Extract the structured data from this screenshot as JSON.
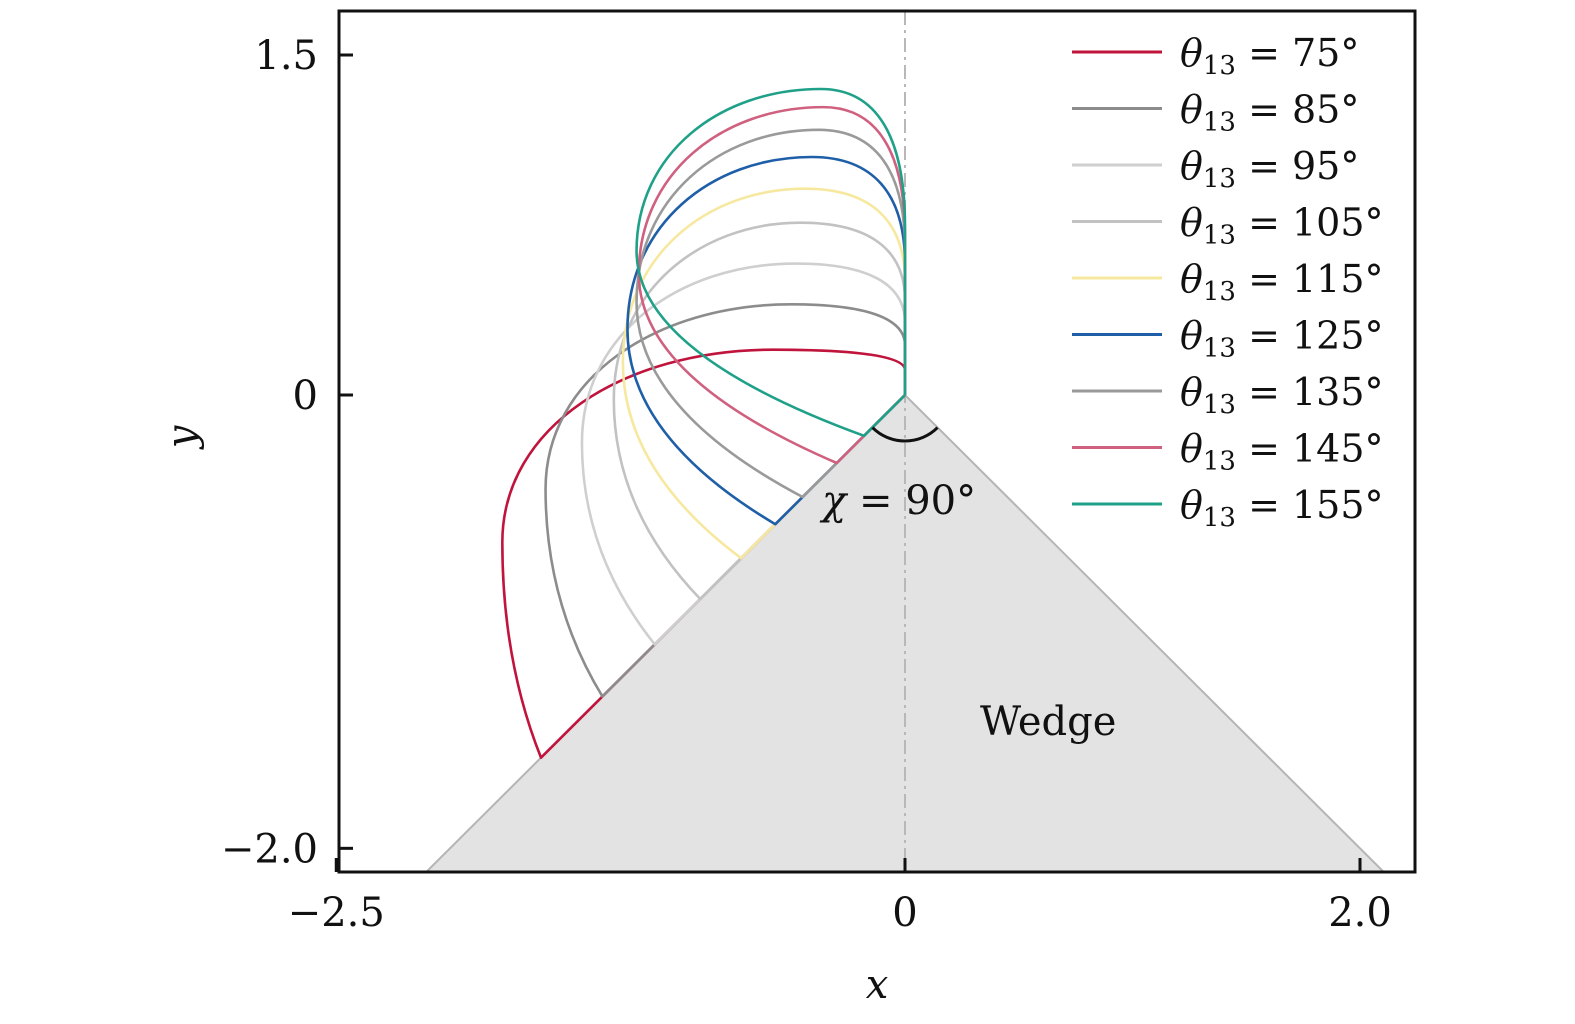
{
  "chart_data": {
    "type": "line",
    "xlabel": "x",
    "ylabel": "y",
    "xlim": [
      -2.5,
      2.25
    ],
    "ylim": [
      -2.05,
      1.75
    ],
    "x_ticks": [
      -2.5,
      0,
      2.0
    ],
    "x_tick_labels": [
      "−2.5",
      "0",
      "2.0"
    ],
    "y_ticks": [
      -2.0,
      0,
      1.5
    ],
    "y_tick_labels": [
      "−2.0",
      "0",
      "1.5"
    ],
    "grid": false,
    "legend_position": "top-right",
    "legend_symbol": "θ",
    "legend_subscript": "13",
    "legend_unit": "°",
    "annotation_symbol": "χ",
    "annotation_value": "90°",
    "wedge_label": "Wedge",
    "wedge_half_angle_deg": 45,
    "series": [
      {
        "name": "75",
        "color": "#c0143c",
        "side_end": [
          -1.6,
          -1.6
        ],
        "apex_y": 0.2,
        "peak_x": -0.58,
        "left_x": -1.77
      },
      {
        "name": "85",
        "color": "#8c8c8c",
        "side_end": [
          -1.33,
          -1.33
        ],
        "apex_y": 0.4,
        "peak_x": -0.5,
        "left_x": -1.58
      },
      {
        "name": "95",
        "color": "#cfcfcf",
        "side_end": [
          -1.1,
          -1.1
        ],
        "apex_y": 0.58,
        "peak_x": -0.48,
        "left_x": -1.42
      },
      {
        "name": "105",
        "color": "#c2c2c2",
        "side_end": [
          -0.9,
          -0.9
        ],
        "apex_y": 0.76,
        "peak_x": -0.46,
        "left_x": -1.28
      },
      {
        "name": "115",
        "color": "#f7e8a0",
        "side_end": [
          -0.72,
          -0.72
        ],
        "apex_y": 0.91,
        "peak_x": -0.44,
        "left_x": -1.24
      },
      {
        "name": "125",
        "color": "#1f5fa8",
        "side_end": [
          -0.57,
          -0.57
        ],
        "apex_y": 1.05,
        "peak_x": -0.41,
        "left_x": -1.22
      },
      {
        "name": "135",
        "color": "#9a9a9a",
        "side_end": [
          -0.45,
          -0.45
        ],
        "apex_y": 1.17,
        "peak_x": -0.38,
        "left_x": -1.18
      },
      {
        "name": "145",
        "color": "#d0607f",
        "side_end": [
          -0.3,
          -0.3
        ],
        "apex_y": 1.27,
        "peak_x": -0.36,
        "left_x": -1.17
      },
      {
        "name": "155",
        "color": "#1fa088",
        "side_end": [
          -0.18,
          -0.18
        ],
        "apex_y": 1.35,
        "peak_x": -0.37,
        "left_x": -1.18
      }
    ]
  }
}
